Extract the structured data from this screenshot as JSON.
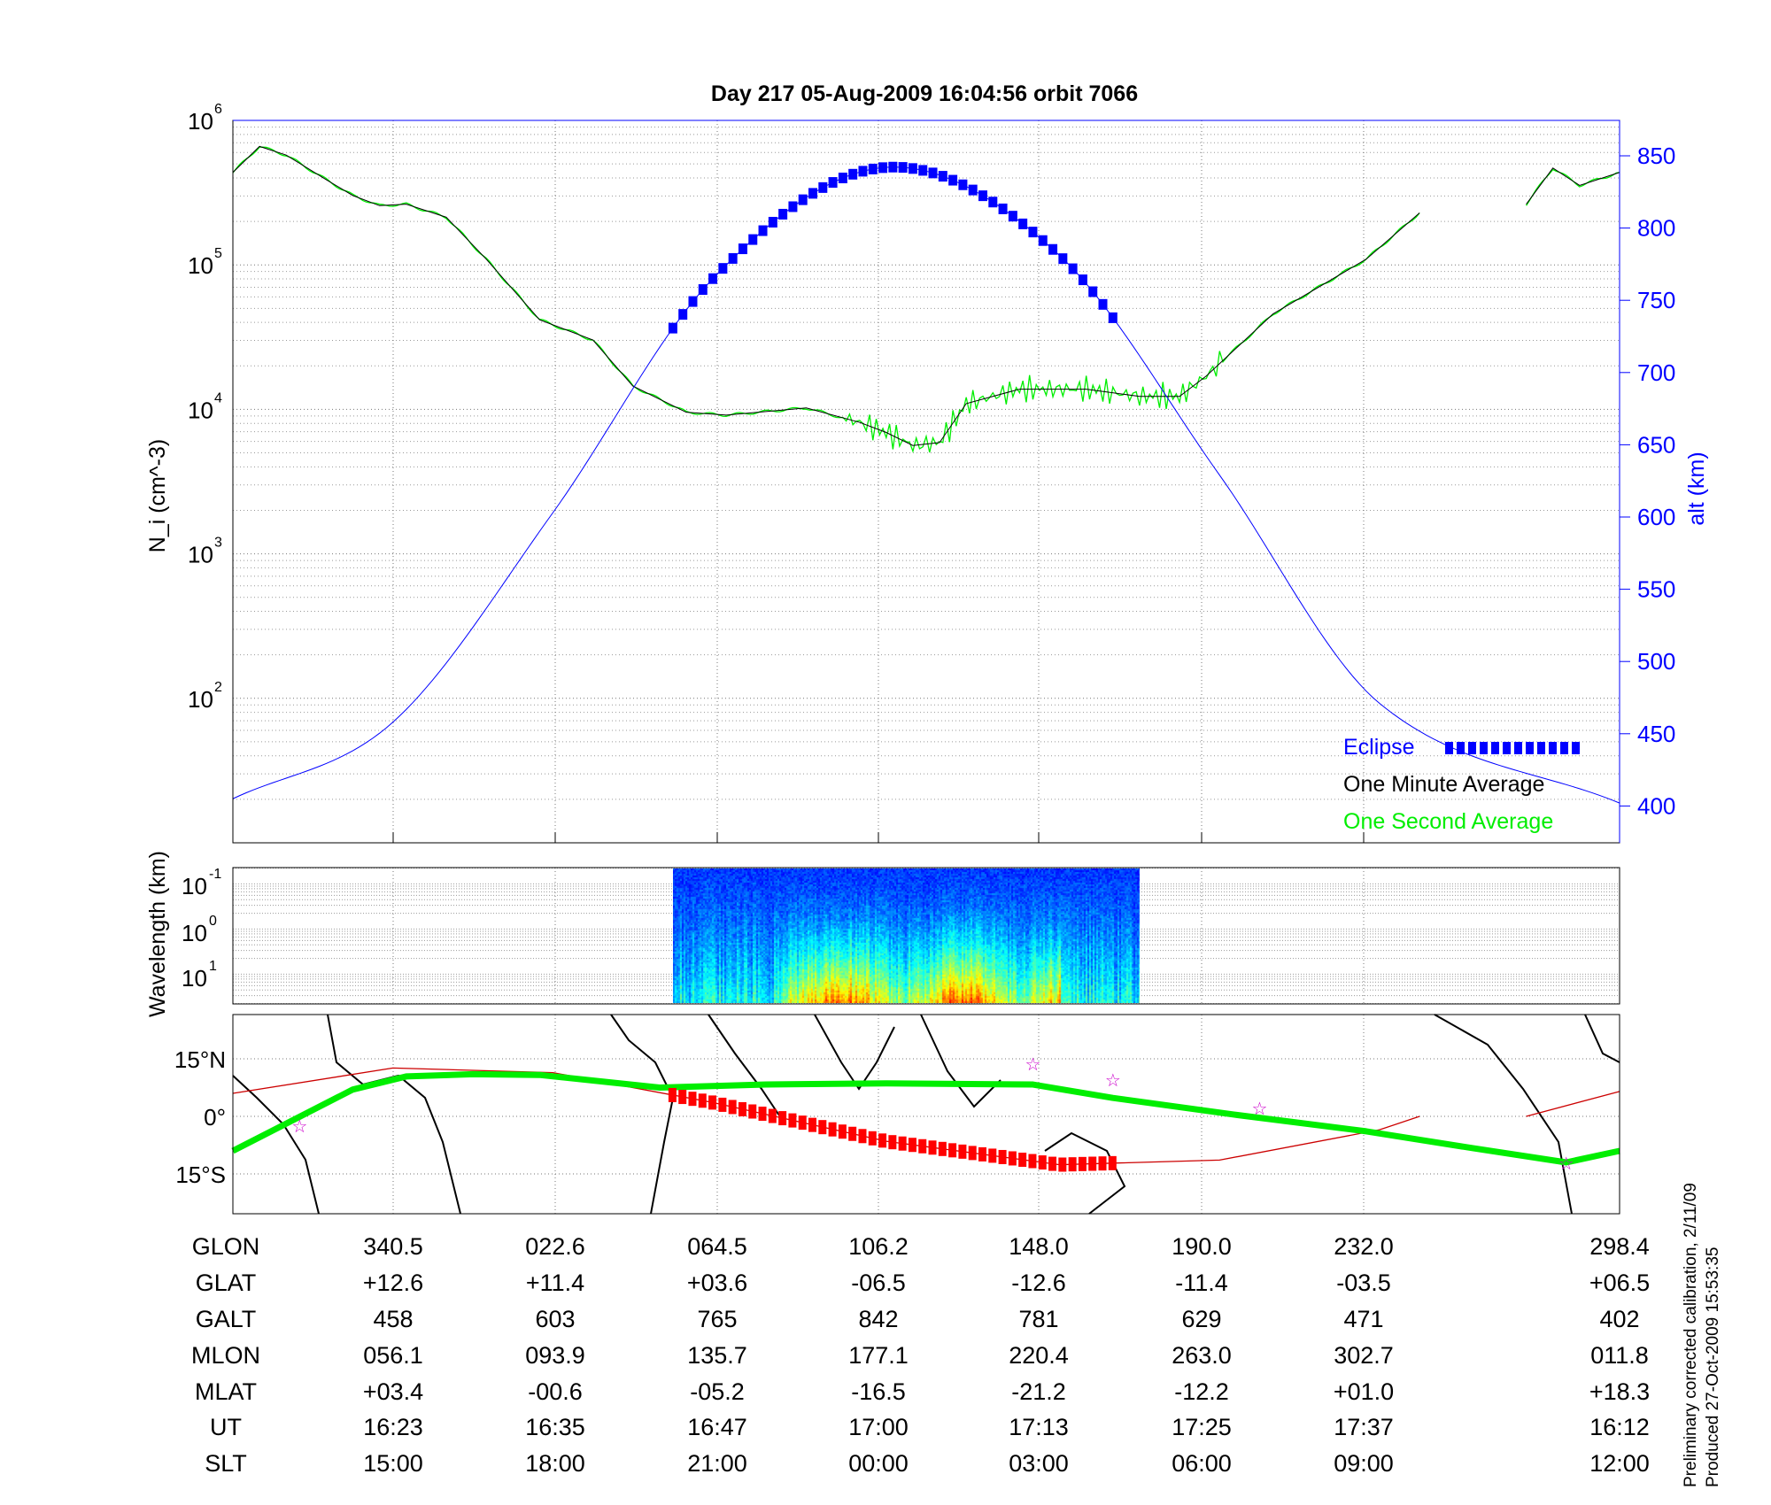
{
  "title": "Day 217  05-Aug-2009 16:04:56   orbit 7066",
  "side_note": [
    "Preliminary corrected calibration,  2/11/09",
    "Produced 27-Oct-2009 15:53:35"
  ],
  "colors": {
    "axis_blue": "#0000ff",
    "one_minute": "#000000",
    "one_second": "#00ee00",
    "eclipse": "#0000ff",
    "orbit_track": "#cc0000",
    "eclipse_track": "#ff0000",
    "green_track": "#00ee00",
    "star": "#cc00cc"
  },
  "chart_data": [
    {
      "type": "line",
      "panel": "density",
      "ylabel": "N_i (cm^-3)",
      "ylabel_main": "N",
      "ylabel_sub": "i",
      "ylabel_unit_open": " (cm",
      "ylabel_unit_exp": "-3",
      "ylabel_unit_close": ")",
      "y_scale": "log",
      "ylim": [
        10,
        1000000
      ],
      "y_ticks": [
        {
          "base": "10",
          "exp": "2",
          "value": 100
        },
        {
          "base": "10",
          "exp": "3",
          "value": 1000
        },
        {
          "base": "10",
          "exp": "4",
          "value": 10000
        },
        {
          "base": "10",
          "exp": "5",
          "value": 100000
        },
        {
          "base": "10",
          "exp": "6",
          "value": 1000000
        }
      ],
      "y2label": "alt (km)",
      "y2lim": [
        374,
        874
      ],
      "y2_ticks": [
        "400",
        "450",
        "500",
        "550",
        "600",
        "650",
        "700",
        "750",
        "800",
        "850"
      ],
      "xlim_ut": [
        "16:11",
        "17:55"
      ],
      "grid": true,
      "legend_placement": "bottom-right",
      "legend": [
        {
          "label": "Eclipse",
          "color": "#0000ff"
        },
        {
          "label": "One Minute Average",
          "color": "#000000"
        },
        {
          "label": "One Second Average",
          "color": "#00ee00"
        }
      ],
      "series": [
        {
          "name": "One Minute Average",
          "segments": [
            [
              [
                "16:11",
                436500
              ],
              [
                "16:13",
                660700
              ],
              [
                "16:15",
                575400
              ],
              [
                "16:18",
                389000
              ],
              [
                "16:20",
                302000
              ],
              [
                "16:22",
                257000
              ],
              [
                "16:24",
                263000
              ],
              [
                "16:27",
                213800
              ],
              [
                "16:30",
                109600
              ],
              [
                "16:34",
                41700
              ],
              [
                "16:38",
                30200
              ],
              [
                "16:41",
                14500
              ],
              [
                "16:45",
                9550
              ],
              [
                "16:48",
                9120
              ],
              [
                "16:54",
                10230
              ],
              [
                "16:58",
                8130
              ],
              [
                "17:00",
                6920
              ],
              [
                "17:02",
                5620
              ],
              [
                "17:04",
                5890
              ],
              [
                "17:06",
                10960
              ],
              [
                "17:10",
                13800
              ],
              [
                "17:15",
                13800
              ],
              [
                "17:19",
                12300
              ],
              [
                "17:22",
                12300
              ],
              [
                "17:24",
                17000
              ],
              [
                "17:29",
                45700
              ],
              [
                "17:36",
                109600
              ],
              [
                "17:40",
                229000
              ]
            ],
            [
              [
                "17:48",
                263000
              ],
              [
                "17:50",
                467700
              ],
              [
                "17:52",
                354800
              ],
              [
                "17:55",
                436500
              ]
            ]
          ]
        },
        {
          "name": "One Second Average",
          "note": "overlays the one minute average with noise between 16:57 and 17:25"
        },
        {
          "name": "Eclipse",
          "axis": "alt",
          "range_ut": [
            "16:44",
            "17:17"
          ]
        }
      ],
      "altitude_km": [
        [
          "16:11",
          405
        ],
        [
          "16:23",
          458
        ],
        [
          "16:35",
          603
        ],
        [
          "16:47",
          765
        ],
        [
          "17:00",
          842
        ],
        [
          "17:13",
          781
        ],
        [
          "17:25",
          629
        ],
        [
          "17:37",
          471
        ],
        [
          "17:55",
          402
        ]
      ]
    },
    {
      "type": "heatmap",
      "panel": "spectrogram",
      "ylabel": "Wavelength (km)",
      "y_scale": "log",
      "y_ticks": [
        {
          "base": "10",
          "exp": "-1"
        },
        {
          "base": "10",
          "exp": "0"
        },
        {
          "base": "10",
          "exp": "1"
        }
      ],
      "data_range_ut": [
        "16:44",
        "17:19"
      ],
      "strongest_ut": [
        "16:52",
        "17:13"
      ],
      "colormap": [
        "#00008f",
        "#0000ff",
        "#0080ff",
        "#00ffff",
        "#80ff80",
        "#ffff00",
        "#ff8000"
      ]
    },
    {
      "type": "line",
      "panel": "map",
      "y_ticks": [
        "15°N",
        "0°",
        "15°S"
      ],
      "y_tick_values": [
        15,
        0,
        -15
      ],
      "orbit_track_lat": [
        [
          "16:11",
          6
        ],
        [
          "16:23",
          12.6
        ],
        [
          "16:35",
          11.4
        ],
        [
          "16:47",
          3.6
        ],
        [
          "17:00",
          -6.5
        ],
        [
          "17:13",
          -12.6
        ],
        [
          "17:25",
          -11.4
        ],
        [
          "17:37",
          -3.5
        ],
        [
          "17:40",
          0
        ]
      ],
      "orbit_track_lat_2": [
        [
          "17:48",
          0
        ],
        [
          "17:55",
          6.5
        ]
      ],
      "eclipse_track_range_ut": [
        "16:44",
        "17:17"
      ],
      "green_track_lat": [
        [
          "16:11",
          -9
        ],
        [
          "16:20",
          7
        ],
        [
          "16:24",
          10.4
        ],
        [
          "16:29",
          11
        ],
        [
          "16:34",
          10.8
        ],
        [
          "16:43",
          7.5
        ],
        [
          "16:51",
          8.3
        ],
        [
          "17:00",
          8.6
        ],
        [
          "17:11",
          8.3
        ],
        [
          "17:17",
          4.8
        ],
        [
          "17:26",
          0.5
        ],
        [
          "17:36",
          -3.9
        ],
        [
          "17:44",
          -8.3
        ],
        [
          "17:51",
          -12
        ],
        [
          "17:55",
          -9
        ]
      ],
      "stars": [
        [
          "16:16",
          -2.3
        ],
        [
          "17:11",
          13.8
        ],
        [
          "17:17",
          9.7
        ],
        [
          "17:28",
          2.3
        ],
        [
          "17:51",
          -12
        ]
      ]
    }
  ],
  "table": {
    "row_labels": [
      "GLON",
      "GLAT",
      "GALT",
      "MLON",
      "MLAT",
      "UT",
      "SLT"
    ],
    "columns": [
      [
        "340.5",
        "+12.6",
        "458",
        "056.1",
        "+03.4",
        "16:23",
        "15:00"
      ],
      [
        "022.6",
        "+11.4",
        "603",
        "093.9",
        "-00.6",
        "16:35",
        "18:00"
      ],
      [
        "064.5",
        "+03.6",
        "765",
        "135.7",
        "-05.2",
        "16:47",
        "21:00"
      ],
      [
        "106.2",
        "-06.5",
        "842",
        "177.1",
        "-16.5",
        "17:00",
        "00:00"
      ],
      [
        "148.0",
        "-12.6",
        "781",
        "220.4",
        "-21.2",
        "17:13",
        "03:00"
      ],
      [
        "190.0",
        "-11.4",
        "629",
        "263.0",
        "-12.2",
        "17:25",
        "06:00"
      ],
      [
        "232.0",
        "-03.5",
        "471",
        "302.7",
        "+01.0",
        "17:37",
        "09:00"
      ],
      [
        "298.4",
        "+06.5",
        "402",
        "011.8",
        "+18.3",
        "16:12",
        "12:00"
      ]
    ]
  }
}
